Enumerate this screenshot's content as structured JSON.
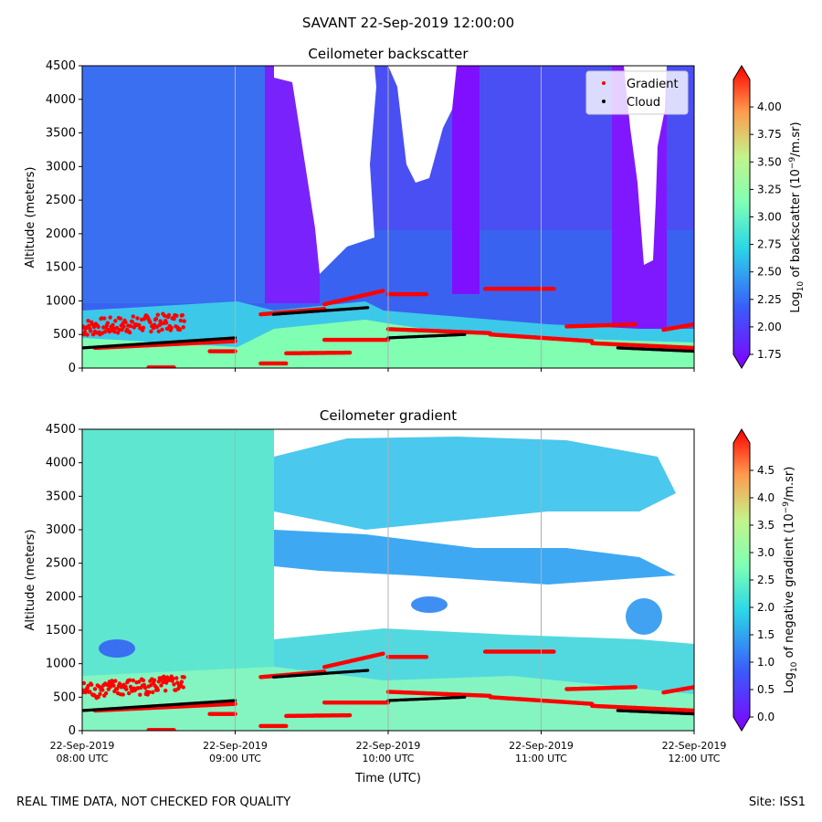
{
  "suptitle": "SAVANT 22-Sep-2019 12:00:00",
  "footer": {
    "left": "REAL TIME DATA, NOT CHECKED FOR QUALITY",
    "right": "Site: ISS1"
  },
  "xlabel": "Time (UTC)",
  "x_ticks": [
    {
      "t": 0,
      "date": "22-Sep-2019",
      "time": "08:00 UTC"
    },
    {
      "t": 60,
      "date": "22-Sep-2019",
      "time": "09:00 UTC"
    },
    {
      "t": 120,
      "date": "22-Sep-2019",
      "time": "10:00 UTC"
    },
    {
      "t": 180,
      "date": "22-Sep-2019",
      "time": "11:00 UTC"
    },
    {
      "t": 240,
      "date": "22-Sep-2019",
      "time": "12:00 UTC"
    }
  ],
  "colormap": "rainbow",
  "chart_data": [
    {
      "type": "heatmap",
      "title": "Ceilometer backscatter",
      "ylabel": "Altitude (meters)",
      "ylim": [
        0,
        4500
      ],
      "y_ticks": [
        0,
        500,
        1000,
        1500,
        2000,
        2500,
        3000,
        3500,
        4000,
        4500
      ],
      "xlim": [
        "22-Sep-2019 08:00 UTC",
        "22-Sep-2019 12:00 UTC"
      ],
      "grid": "vertical",
      "legend": {
        "placement": "top-right",
        "entries": [
          {
            "name": "Gradient",
            "color": "#ff0000"
          },
          {
            "name": "Cloud",
            "color": "#000000"
          }
        ]
      },
      "colorbar": {
        "label_prefix": "Log",
        "label_sub": "10",
        "label_mid": " of backscatter (10",
        "label_sup": "−9",
        "label_suffix": "/m.sr)",
        "range": [
          1.75,
          4.25
        ],
        "ticks": [
          "1.75",
          "2.00",
          "2.25",
          "2.50",
          "2.75",
          "3.00",
          "3.25",
          "3.50",
          "3.75",
          "4.00"
        ],
        "extend": "both"
      }
    },
    {
      "type": "heatmap",
      "title": "Ceilometer gradient",
      "ylabel": "Altitude (meters)",
      "ylim": [
        0,
        4500
      ],
      "y_ticks": [
        0,
        500,
        1000,
        1500,
        2000,
        2500,
        3000,
        3500,
        4000,
        4500
      ],
      "xlim": [
        "22-Sep-2019 08:00 UTC",
        "22-Sep-2019 12:00 UTC"
      ],
      "grid": "vertical",
      "colorbar": {
        "label_prefix": "Log",
        "label_sub": "10",
        "label_mid": " of negative gradient (10",
        "label_sup": "−9",
        "label_suffix": "/m.sr)",
        "range": [
          0,
          5
        ],
        "ticks": [
          "0.0",
          "0.5",
          "1.0",
          "1.5",
          "2.0",
          "2.5",
          "3.0",
          "3.5",
          "4.0",
          "4.5"
        ],
        "extend": "both"
      }
    }
  ],
  "series": {
    "gradient_segments": [
      {
        "x": [
          0,
          40
        ],
        "y": [
          600,
          700
        ],
        "note": "noisy band"
      },
      {
        "x": [
          5,
          60
        ],
        "y": [
          300,
          400
        ]
      },
      {
        "x": [
          70,
          95
        ],
        "y": [
          800,
          880
        ]
      },
      {
        "x": [
          95,
          118
        ],
        "y": [
          950,
          1150
        ]
      },
      {
        "x": [
          120,
          135
        ],
        "y": [
          1100,
          1100
        ]
      },
      {
        "x": [
          50,
          60
        ],
        "y": [
          250,
          250
        ]
      },
      {
        "x": [
          70,
          80
        ],
        "y": [
          70,
          70
        ]
      },
      {
        "x": [
          80,
          105
        ],
        "y": [
          220,
          230
        ]
      },
      {
        "x": [
          95,
          120
        ],
        "y": [
          420,
          420
        ]
      },
      {
        "x": [
          120,
          160
        ],
        "y": [
          580,
          520
        ]
      },
      {
        "x": [
          160,
          200
        ],
        "y": [
          500,
          400
        ]
      },
      {
        "x": [
          200,
          240
        ],
        "y": [
          370,
          300
        ]
      },
      {
        "x": [
          158,
          185
        ],
        "y": [
          1180,
          1180
        ]
      },
      {
        "x": [
          190,
          217
        ],
        "y": [
          620,
          650
        ]
      },
      {
        "x": [
          228,
          240
        ],
        "y": [
          570,
          650
        ]
      },
      {
        "x": [
          26,
          36
        ],
        "y": [
          10,
          10
        ]
      }
    ],
    "cloud_segments": [
      {
        "x": [
          0,
          60
        ],
        "y": [
          300,
          450
        ]
      },
      {
        "x": [
          75,
          112
        ],
        "y": [
          800,
          900
        ]
      },
      {
        "x": [
          120,
          150
        ],
        "y": [
          450,
          500
        ]
      },
      {
        "x": [
          210,
          240
        ],
        "y": [
          300,
          250
        ]
      }
    ]
  }
}
